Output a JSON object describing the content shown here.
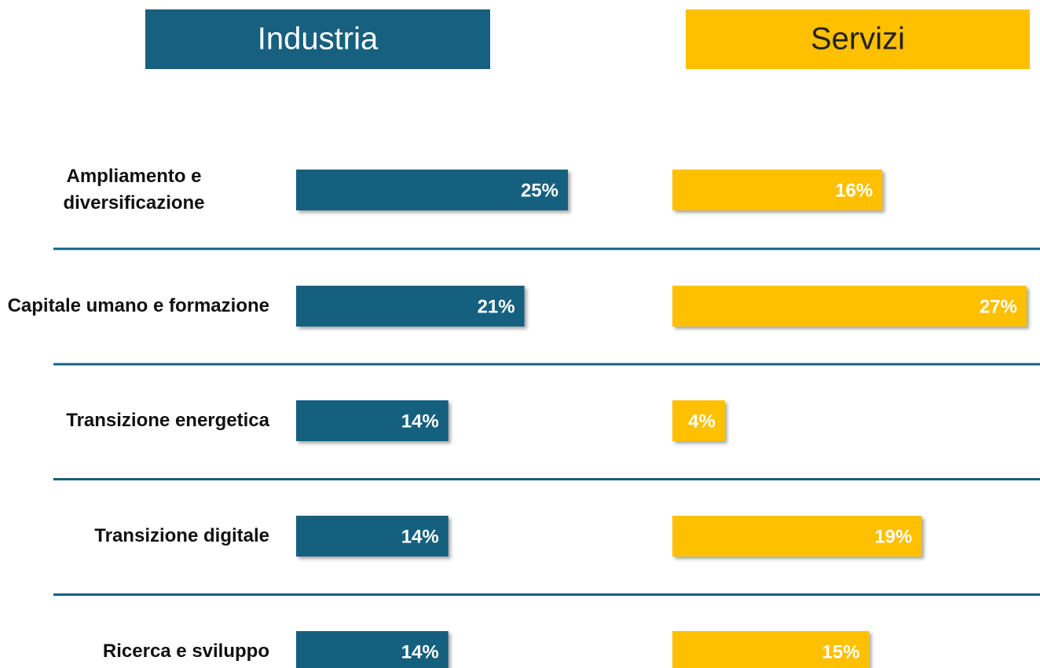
{
  "chart_data": {
    "type": "bar",
    "orientation": "horizontal",
    "categories": [
      "Ampliamento e diversificazione",
      "Capitale umano e formazione",
      "Transizione energetica",
      "Transizione digitale",
      "Ricerca e sviluppo"
    ],
    "series": [
      {
        "name": "Industria",
        "color": "#17607f",
        "values": [
          25,
          21,
          14,
          14,
          14
        ],
        "value_labels": [
          "25%",
          "21%",
          "14%",
          "14%",
          "14%"
        ],
        "xlim": [
          0,
          25
        ]
      },
      {
        "name": "Servizi",
        "color": "#ffc000",
        "values": [
          16,
          27,
          4,
          19,
          15
        ],
        "value_labels": [
          "16%",
          "27%",
          "4%",
          "19%",
          "15%"
        ],
        "xlim": [
          0,
          27
        ]
      }
    ]
  }
}
